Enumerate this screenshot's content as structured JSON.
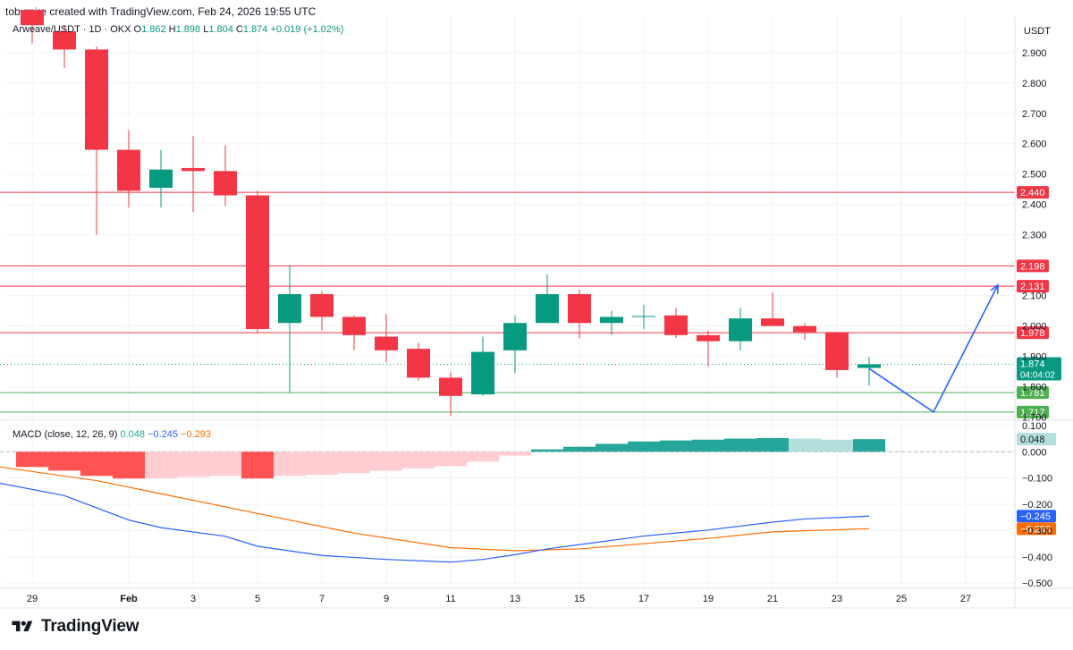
{
  "header": {
    "created_by": "tobymire created with TradingView.com, Feb 24, 2026 19:55 UTC"
  },
  "footer": {
    "logo_text": "TradingView",
    "logo_icon": "tradingview-logo-icon"
  },
  "colors": {
    "up": "#089981",
    "down": "#f23645",
    "grid": "#f0f3fa",
    "resistance": "#f23645",
    "support": "#4caf50",
    "projection": "#2962ff",
    "macd_line": "#2962ff",
    "signal_line": "#ff6d00",
    "hist_pos_strong": "#26a69a",
    "hist_pos_weak": "#b2dfdb",
    "hist_neg_strong": "#ff5252",
    "hist_neg_weak": "#ffcdd2"
  },
  "chart_data": [
    {
      "type": "candlestick",
      "title": "Arweave/USDT · 1D · OKX",
      "legend": {
        "o_label": "O",
        "open": "1.862",
        "h_label": "H",
        "high": "1.898",
        "l_label": "L",
        "low": "1.804",
        "c_label": "C",
        "close": "1.874",
        "change": "+0.019 (+1.02%)"
      },
      "currency": "USDT",
      "ylim": [
        1.69,
        3.02
      ],
      "y_ticks": [
        "2.900",
        "2.800",
        "2.700",
        "2.600",
        "2.500",
        "2.400",
        "2.300",
        "2.100",
        "2.000",
        "1.900",
        "1.800",
        "1.700"
      ],
      "x_tick_labels": [
        {
          "date": "2026-01-29",
          "label": "29"
        },
        {
          "date": "2026-02-01",
          "label": "Feb"
        },
        {
          "date": "2026-02-03",
          "label": "3"
        },
        {
          "date": "2026-02-05",
          "label": "5"
        },
        {
          "date": "2026-02-07",
          "label": "7"
        },
        {
          "date": "2026-02-09",
          "label": "9"
        },
        {
          "date": "2026-02-11",
          "label": "11"
        },
        {
          "date": "2026-02-13",
          "label": "13"
        },
        {
          "date": "2026-02-15",
          "label": "15"
        },
        {
          "date": "2026-02-17",
          "label": "17"
        },
        {
          "date": "2026-02-19",
          "label": "19"
        },
        {
          "date": "2026-02-21",
          "label": "21"
        },
        {
          "date": "2026-02-23",
          "label": "23"
        },
        {
          "date": "2026-02-25",
          "label": "25"
        },
        {
          "date": "2026-02-27",
          "label": "27"
        }
      ],
      "candles": [
        {
          "date": "2026-01-29",
          "o": 3.04,
          "h": 3.04,
          "l": 2.93,
          "c": 2.99
        },
        {
          "date": "2026-01-30",
          "o": 2.97,
          "h": 2.99,
          "l": 2.85,
          "c": 2.91
        },
        {
          "date": "2026-01-31",
          "o": 2.91,
          "h": 2.92,
          "l": 2.3,
          "c": 2.58
        },
        {
          "date": "2026-02-01",
          "o": 2.58,
          "h": 2.645,
          "l": 2.39,
          "c": 2.445
        },
        {
          "date": "2026-02-02",
          "o": 2.455,
          "h": 2.58,
          "l": 2.39,
          "c": 2.515
        },
        {
          "date": "2026-02-03",
          "o": 2.52,
          "h": 2.625,
          "l": 2.375,
          "c": 2.51
        },
        {
          "date": "2026-02-04",
          "o": 2.51,
          "h": 2.595,
          "l": 2.395,
          "c": 2.43
        },
        {
          "date": "2026-02-05",
          "o": 2.43,
          "h": 2.445,
          "l": 1.975,
          "c": 1.99
        },
        {
          "date": "2026-02-06",
          "o": 2.01,
          "h": 2.2,
          "l": 1.78,
          "c": 2.105
        },
        {
          "date": "2026-02-07",
          "o": 2.105,
          "h": 2.115,
          "l": 1.985,
          "c": 2.03
        },
        {
          "date": "2026-02-08",
          "o": 2.03,
          "h": 2.035,
          "l": 1.92,
          "c": 1.97
        },
        {
          "date": "2026-02-09",
          "o": 1.965,
          "h": 2.04,
          "l": 1.88,
          "c": 1.92
        },
        {
          "date": "2026-02-10",
          "o": 1.925,
          "h": 1.945,
          "l": 1.82,
          "c": 1.83
        },
        {
          "date": "2026-02-11",
          "o": 1.83,
          "h": 1.85,
          "l": 1.705,
          "c": 1.77
        },
        {
          "date": "2026-02-12",
          "o": 1.775,
          "h": 1.965,
          "l": 1.77,
          "c": 1.915
        },
        {
          "date": "2026-02-13",
          "o": 1.92,
          "h": 2.035,
          "l": 1.845,
          "c": 2.01
        },
        {
          "date": "2026-02-14",
          "o": 2.01,
          "h": 2.17,
          "l": 2.01,
          "c": 2.105
        },
        {
          "date": "2026-02-15",
          "o": 2.105,
          "h": 2.12,
          "l": 1.96,
          "c": 2.01
        },
        {
          "date": "2026-02-16",
          "o": 2.01,
          "h": 2.05,
          "l": 1.97,
          "c": 2.03
        },
        {
          "date": "2026-02-17",
          "o": 2.03,
          "h": 2.07,
          "l": 1.99,
          "c": 2.033
        },
        {
          "date": "2026-02-18",
          "o": 2.035,
          "h": 2.06,
          "l": 1.96,
          "c": 1.97
        },
        {
          "date": "2026-02-19",
          "o": 1.97,
          "h": 1.985,
          "l": 1.865,
          "c": 1.95
        },
        {
          "date": "2026-02-20",
          "o": 1.95,
          "h": 2.06,
          "l": 1.92,
          "c": 2.025
        },
        {
          "date": "2026-02-21",
          "o": 2.025,
          "h": 2.11,
          "l": 2.005,
          "c": 2.0
        },
        {
          "date": "2026-02-22",
          "o": 2.0,
          "h": 2.01,
          "l": 1.955,
          "c": 1.98
        },
        {
          "date": "2026-02-23",
          "o": 1.98,
          "h": 1.98,
          "l": 1.83,
          "c": 1.855
        },
        {
          "date": "2026-02-24",
          "o": 1.862,
          "h": 1.898,
          "l": 1.804,
          "c": 1.874
        }
      ],
      "horizontal_levels": [
        {
          "label": "2.440",
          "price": 2.44,
          "kind": "resistance"
        },
        {
          "label": "2.198",
          "price": 2.198,
          "kind": "resistance"
        },
        {
          "label": "2.131",
          "price": 2.131,
          "kind": "resistance"
        },
        {
          "label": "1.978",
          "price": 1.978,
          "kind": "resistance"
        },
        {
          "label": "1.781",
          "price": 1.781,
          "kind": "support"
        },
        {
          "label": "1.717",
          "price": 1.717,
          "kind": "support"
        }
      ],
      "current_price": {
        "label": "1.874",
        "price": 1.874,
        "countdown": "04:04:02"
      },
      "projection_path": [
        {
          "date": "2026-02-24",
          "price": 1.86
        },
        {
          "date": "2026-02-26",
          "price": 1.717
        },
        {
          "date": "2026-02-28",
          "price": 2.135
        }
      ]
    },
    {
      "type": "macd",
      "title": "MACD (close, 12, 26, 9)",
      "legend_values": {
        "histogram": "0.048",
        "macd": "−0.245",
        "signal": "−0.293"
      },
      "ylim": [
        -0.52,
        0.12
      ],
      "y_ticks": [
        "0.100",
        "0.000",
        "−0.100",
        "−0.200",
        "−0.300",
        "−0.400",
        "−0.500"
      ],
      "histogram": [
        {
          "date": "2026-01-29",
          "value": -0.058
        },
        {
          "date": "2026-01-30",
          "value": -0.072
        },
        {
          "date": "2026-01-31",
          "value": -0.092
        },
        {
          "date": "2026-02-01",
          "value": -0.102
        },
        {
          "date": "2026-02-02",
          "value": -0.101
        },
        {
          "date": "2026-02-03",
          "value": -0.096
        },
        {
          "date": "2026-02-04",
          "value": -0.092
        },
        {
          "date": "2026-02-05",
          "value": -0.102
        },
        {
          "date": "2026-02-06",
          "value": -0.092
        },
        {
          "date": "2026-02-07",
          "value": -0.088
        },
        {
          "date": "2026-02-08",
          "value": -0.082
        },
        {
          "date": "2026-02-09",
          "value": -0.072
        },
        {
          "date": "2026-02-10",
          "value": -0.063
        },
        {
          "date": "2026-02-11",
          "value": -0.055
        },
        {
          "date": "2026-02-12",
          "value": -0.038
        },
        {
          "date": "2026-02-13",
          "value": -0.015
        },
        {
          "date": "2026-02-14",
          "value": 0.009
        },
        {
          "date": "2026-02-15",
          "value": 0.019
        },
        {
          "date": "2026-02-16",
          "value": 0.03
        },
        {
          "date": "2026-02-17",
          "value": 0.039
        },
        {
          "date": "2026-02-18",
          "value": 0.043
        },
        {
          "date": "2026-02-19",
          "value": 0.046
        },
        {
          "date": "2026-02-20",
          "value": 0.05
        },
        {
          "date": "2026-02-21",
          "value": 0.052
        },
        {
          "date": "2026-02-22",
          "value": 0.05
        },
        {
          "date": "2026-02-23",
          "value": 0.046
        },
        {
          "date": "2026-02-24",
          "value": 0.048
        }
      ],
      "macd_line": [
        {
          "date": "2026-01-28",
          "value": -0.12
        },
        {
          "date": "2026-01-30",
          "value": -0.167
        },
        {
          "date": "2026-02-01",
          "value": -0.26
        },
        {
          "date": "2026-02-02",
          "value": -0.289
        },
        {
          "date": "2026-02-04",
          "value": -0.322
        },
        {
          "date": "2026-02-05",
          "value": -0.36
        },
        {
          "date": "2026-02-07",
          "value": -0.395
        },
        {
          "date": "2026-02-09",
          "value": -0.41
        },
        {
          "date": "2026-02-11",
          "value": -0.42
        },
        {
          "date": "2026-02-12",
          "value": -0.41
        },
        {
          "date": "2026-02-13",
          "value": -0.392
        },
        {
          "date": "2026-02-14",
          "value": -0.37
        },
        {
          "date": "2026-02-17",
          "value": -0.321
        },
        {
          "date": "2026-02-19",
          "value": -0.298
        },
        {
          "date": "2026-02-21",
          "value": -0.268
        },
        {
          "date": "2026-02-22",
          "value": -0.256
        },
        {
          "date": "2026-02-24",
          "value": -0.245
        }
      ],
      "signal_line": [
        {
          "date": "2026-01-28",
          "value": -0.058
        },
        {
          "date": "2026-01-31",
          "value": -0.11
        },
        {
          "date": "2026-02-02",
          "value": -0.16
        },
        {
          "date": "2026-02-05",
          "value": -0.235
        },
        {
          "date": "2026-02-08",
          "value": -0.31
        },
        {
          "date": "2026-02-11",
          "value": -0.365
        },
        {
          "date": "2026-02-13",
          "value": -0.377
        },
        {
          "date": "2026-02-15",
          "value": -0.37
        },
        {
          "date": "2026-02-17",
          "value": -0.35
        },
        {
          "date": "2026-02-19",
          "value": -0.33
        },
        {
          "date": "2026-02-21",
          "value": -0.305
        },
        {
          "date": "2026-02-24",
          "value": -0.293
        }
      ]
    }
  ]
}
